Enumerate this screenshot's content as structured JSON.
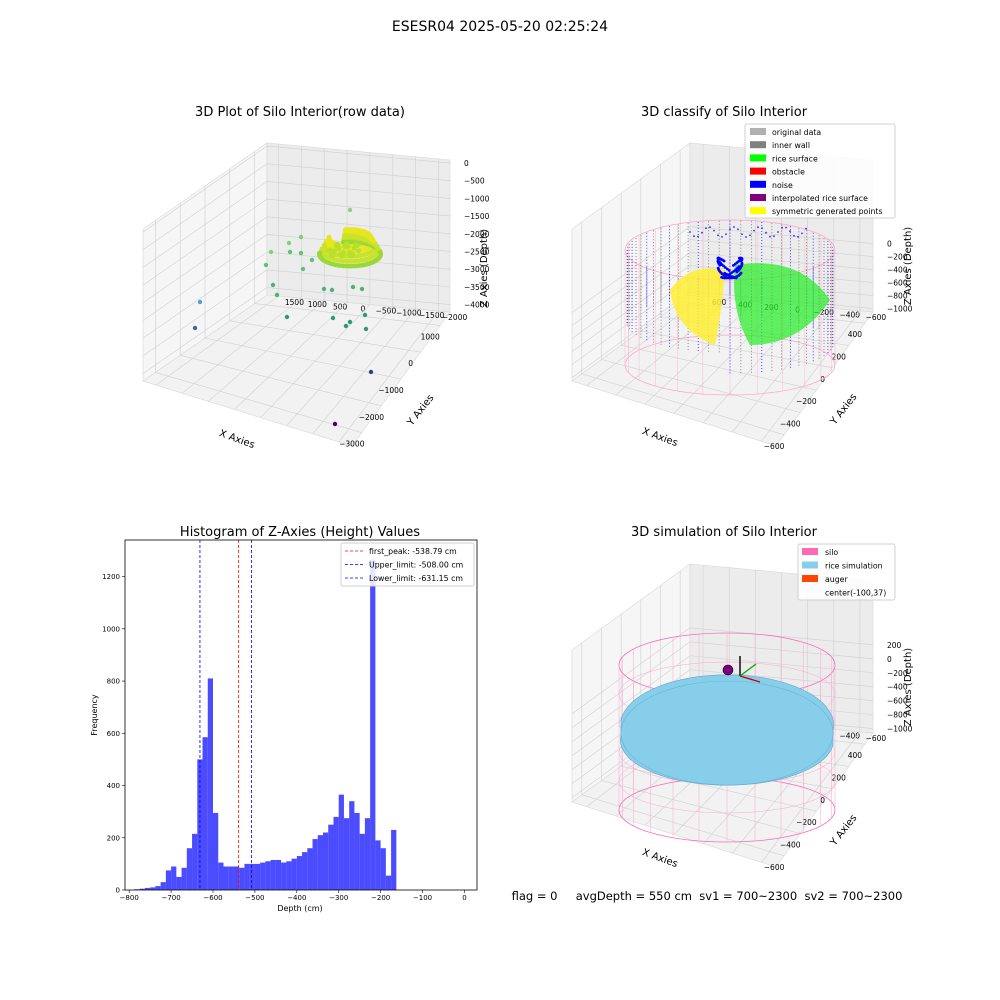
{
  "suptitle": "ESESR04 2025-05-20 02:25:24",
  "footer": "flag = 0     avgDepth = 550 cm  sv1 = 700~2300  sv2 = 700~2300",
  "colors": {
    "hist_bar": "#0000ff",
    "peak_line": "#ff0000",
    "limit_line": "#0000ff",
    "silo": "#ff69b4",
    "rice_sim": "#87ceeb",
    "auger": "#ff4500"
  },
  "chart_data": [
    {
      "type": "scatter3d",
      "title": "3D Plot of Silo Interior(row data)",
      "xlabel": "X Axies",
      "ylabel": "Y Axies",
      "zlabel": "Z Axies (Depth)",
      "x_ticks": [
        "−3000",
        "−2000",
        "−1000",
        "0",
        "1000"
      ],
      "y_ticks": [
        "1500",
        "1000",
        "500",
        "0",
        "−500",
        "−1000",
        "−1500",
        "−2000"
      ],
      "z_ticks": [
        "0",
        "−500",
        "−1000",
        "−1500",
        "−2000",
        "−2500",
        "−3000",
        "−3500",
        "−4000"
      ],
      "grid": true
    },
    {
      "type": "scatter3d",
      "title": "3D classify of Silo Interior",
      "xlabel": "X Axies",
      "ylabel": "Y Axies",
      "zlabel": "Z Axies (Depth)",
      "x_ticks": [
        "−600",
        "−400",
        "−200",
        "0",
        "200",
        "400"
      ],
      "y_ticks": [
        "600",
        "400",
        "200",
        "0",
        "−200",
        "−400",
        "−600"
      ],
      "z_ticks": [
        "0",
        "−200",
        "−400",
        "−600",
        "−800",
        "−1000"
      ],
      "legend_position": "top-right",
      "legend": [
        {
          "label": "original data",
          "color": "#b0b0b0"
        },
        {
          "label": "inner wall",
          "color": "#808080"
        },
        {
          "label": "rice surface",
          "color": "#00ff00"
        },
        {
          "label": "obstacle",
          "color": "#ff0000"
        },
        {
          "label": "noise",
          "color": "#0000ff"
        },
        {
          "label": "interpolated rice surface",
          "color": "#800080"
        },
        {
          "label": "symmetric generated points",
          "color": "#ffff00"
        }
      ],
      "grid": true
    },
    {
      "type": "bar",
      "title": "Histogram of Z-Axies (Height) Values",
      "xlabel": "Depth (cm)",
      "ylabel": "Frequency",
      "xlim": [
        -810,
        30
      ],
      "ylim": [
        0,
        1340
      ],
      "x_ticks": [
        -800,
        -700,
        -600,
        -500,
        -400,
        -300,
        -200,
        -100,
        0
      ],
      "y_ticks": [
        0,
        200,
        400,
        600,
        800,
        1000,
        1200
      ],
      "bin_width": 12.5,
      "bin_start": -787.5,
      "values": [
        3,
        5,
        8,
        10,
        15,
        30,
        75,
        90,
        50,
        85,
        160,
        215,
        500,
        585,
        810,
        295,
        105,
        90,
        90,
        90,
        85,
        100,
        100,
        100,
        105,
        110,
        115,
        115,
        105,
        110,
        120,
        130,
        145,
        160,
        195,
        210,
        220,
        250,
        280,
        365,
        275,
        340,
        295,
        215,
        275,
        1265,
        190,
        160,
        55,
        230
      ],
      "reference_lines": [
        {
          "label": "first_peak: -538.79 cm",
          "x": -538.79,
          "color": "#ff0000"
        },
        {
          "label": "Upper_limit: -508.00 cm",
          "x": -508.0,
          "color": "#0000ff"
        },
        {
          "label": "Lower_limit: -631.15 cm",
          "x": -631.15,
          "color": "#0000ff"
        }
      ],
      "legend_position": "top-right",
      "grid": false
    },
    {
      "type": "surface3d",
      "title": "3D simulation of Silo Interior",
      "xlabel": "X Axies",
      "ylabel": "Y Axies",
      "zlabel": "Z Axies (Depth)",
      "x_ticks": [
        "−600",
        "−400",
        "−200",
        "0",
        "200",
        "400"
      ],
      "y_ticks": [
        "600",
        "400",
        "200",
        "0",
        "−200",
        "−400",
        "−600"
      ],
      "z_ticks": [
        "200",
        "0",
        "−200",
        "−400",
        "−600",
        "−800",
        "−1000"
      ],
      "legend_position": "top-right",
      "legend": [
        {
          "label": "silo",
          "color": "#ff69b4"
        },
        {
          "label": "rice simulation",
          "color": "#87ceeb"
        },
        {
          "label": "auger",
          "color": "#ff4500"
        },
        {
          "label": "center(-100,37)",
          "color": ""
        }
      ],
      "grid": true
    }
  ]
}
